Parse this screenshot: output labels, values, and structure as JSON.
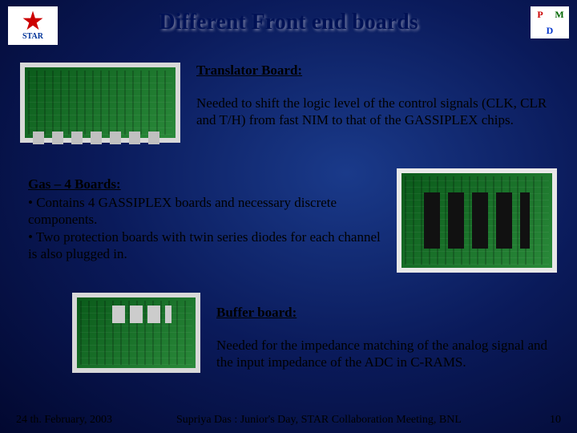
{
  "title": "Different Front end boards",
  "logos": {
    "left_text": "STAR",
    "right": {
      "p": "P",
      "m": "M",
      "d": "D"
    }
  },
  "translator": {
    "heading": "Translator Board:",
    "body": "Needed to shift the logic level of the control signals (CLK, CLR and T/H) from fast NIM to that of the GASSIPLEX chips."
  },
  "gas4": {
    "heading": "Gas – 4 Boards:",
    "bullet1": "Contains 4 GASSIPLEX boards and necessary discrete components.",
    "bullet2": "Two protection boards with twin series diodes for each channel is also plugged in."
  },
  "buffer": {
    "heading": "Buffer board:",
    "body": "Needed for the impedance matching of the analog signal and the input impedance of the ADC in C-RAMS."
  },
  "footer": {
    "date": "24 th. February,  2003",
    "center": "Supriya Das : Junior's Day, STAR Collaboration Meeting, BNL",
    "page": "10"
  },
  "style": {
    "title_color": "#001155",
    "bg_gradient_inner": "#1a3a8a",
    "bg_gradient_outer": "#020830",
    "text_color": "#000000",
    "title_fontsize_pt": 21,
    "body_fontsize_pt": 13,
    "footer_fontsize_pt": 11
  }
}
